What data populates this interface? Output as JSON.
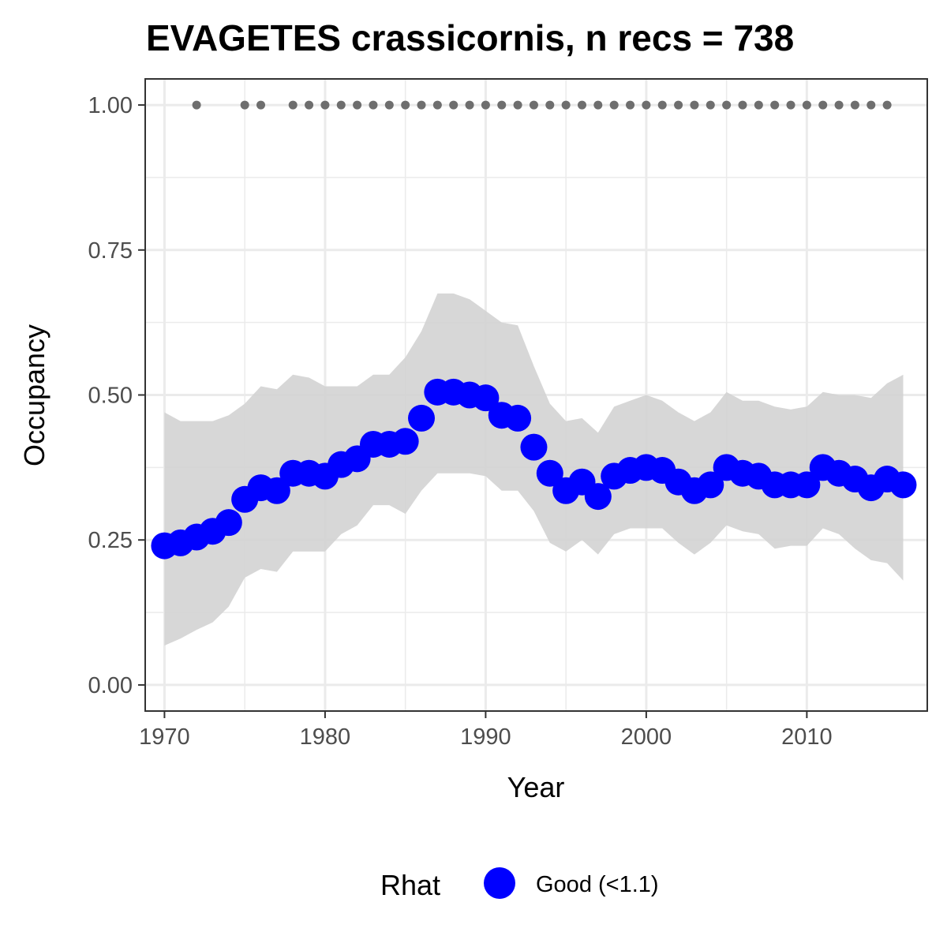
{
  "chart_data": {
    "type": "line",
    "title": "EVAGETES crassicornis, n recs = 738",
    "xlabel": "Year",
    "ylabel": "Occupancy",
    "xlim": [
      1968.8,
      2017.5
    ],
    "ylim": [
      -0.045,
      1.045
    ],
    "x_ticks": [
      1970,
      1980,
      1990,
      2000,
      2010
    ],
    "x_tick_labels": [
      "1970",
      "1980",
      "1990",
      "2000",
      "2010"
    ],
    "y_ticks": [
      0,
      0.25,
      0.5,
      0.75,
      1.0
    ],
    "y_tick_labels": [
      "0.00",
      "0.25",
      "0.50",
      "0.75",
      "1.00"
    ],
    "grid": true,
    "legend": {
      "position": "bottom",
      "title": "Rhat",
      "entries": [
        {
          "label": "Good (<1.1)",
          "color": "#0000ff"
        }
      ]
    },
    "colors": {
      "points": "#0000ff",
      "ribbon": "#d3d3d3",
      "records": "#6e6e6e",
      "grid": "#ebebeb",
      "panel_border": "#333333"
    },
    "series": [
      {
        "name": "Good (<1.1)",
        "x": [
          1970,
          1971,
          1972,
          1973,
          1974,
          1975,
          1976,
          1977,
          1978,
          1979,
          1980,
          1981,
          1982,
          1983,
          1984,
          1985,
          1986,
          1987,
          1988,
          1989,
          1990,
          1991,
          1992,
          1993,
          1994,
          1995,
          1996,
          1997,
          1998,
          1999,
          2000,
          2001,
          2002,
          2003,
          2004,
          2005,
          2006,
          2007,
          2008,
          2009,
          2010,
          2011,
          2012,
          2013,
          2014,
          2015,
          2016
        ],
        "y": [
          0.24,
          0.245,
          0.255,
          0.265,
          0.28,
          0.32,
          0.34,
          0.335,
          0.365,
          0.365,
          0.36,
          0.38,
          0.39,
          0.415,
          0.415,
          0.42,
          0.46,
          0.505,
          0.505,
          0.5,
          0.495,
          0.465,
          0.46,
          0.41,
          0.365,
          0.335,
          0.35,
          0.325,
          0.36,
          0.37,
          0.375,
          0.37,
          0.35,
          0.335,
          0.345,
          0.375,
          0.365,
          0.36,
          0.345,
          0.345,
          0.345,
          0.375,
          0.365,
          0.355,
          0.34,
          0.355,
          0.345
        ],
        "lower": [
          0.068,
          0.08,
          0.095,
          0.108,
          0.135,
          0.185,
          0.2,
          0.195,
          0.23,
          0.23,
          0.23,
          0.26,
          0.275,
          0.31,
          0.31,
          0.295,
          0.335,
          0.365,
          0.365,
          0.365,
          0.36,
          0.335,
          0.335,
          0.3,
          0.245,
          0.23,
          0.25,
          0.225,
          0.26,
          0.27,
          0.27,
          0.27,
          0.245,
          0.225,
          0.245,
          0.275,
          0.265,
          0.26,
          0.235,
          0.24,
          0.24,
          0.27,
          0.26,
          0.235,
          0.215,
          0.21,
          0.18
        ],
        "upper": [
          0.47,
          0.455,
          0.455,
          0.455,
          0.465,
          0.485,
          0.515,
          0.51,
          0.535,
          0.53,
          0.515,
          0.515,
          0.515,
          0.535,
          0.535,
          0.565,
          0.61,
          0.675,
          0.675,
          0.665,
          0.645,
          0.625,
          0.62,
          0.55,
          0.485,
          0.455,
          0.46,
          0.435,
          0.48,
          0.49,
          0.5,
          0.49,
          0.47,
          0.455,
          0.47,
          0.505,
          0.49,
          0.49,
          0.48,
          0.475,
          0.48,
          0.505,
          0.5,
          0.5,
          0.495,
          0.52,
          0.535
        ]
      },
      {
        "name": "records",
        "x": [
          1972,
          1975,
          1976,
          1978,
          1979,
          1980,
          1981,
          1982,
          1983,
          1984,
          1985,
          1986,
          1987,
          1988,
          1989,
          1990,
          1991,
          1992,
          1993,
          1994,
          1995,
          1996,
          1997,
          1998,
          1999,
          2000,
          2001,
          2002,
          2003,
          2004,
          2005,
          2006,
          2007,
          2008,
          2009,
          2010,
          2011,
          2012,
          2013,
          2014,
          2015
        ],
        "y": [
          1,
          1,
          1,
          1,
          1,
          1,
          1,
          1,
          1,
          1,
          1,
          1,
          1,
          1,
          1,
          1,
          1,
          1,
          1,
          1,
          1,
          1,
          1,
          1,
          1,
          1,
          1,
          1,
          1,
          1,
          1,
          1,
          1,
          1,
          1,
          1,
          1,
          1,
          1,
          1,
          1
        ]
      }
    ]
  }
}
